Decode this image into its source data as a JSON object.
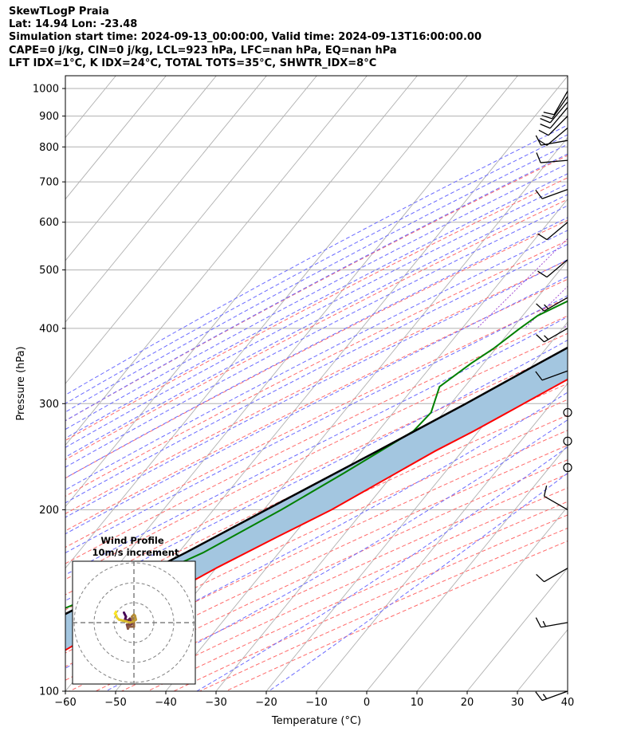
{
  "header": {
    "title": "SkewTLogP Praia",
    "location": "Lat: 14.94   Lon: -23.48",
    "times": "Simulation start time: 2024-09-13_00:00:00, Valid time: 2024-09-13T16:00:00.00",
    "parcel": "CAPE=0 j/kg, CIN=0 j/kg, LCL=923 hPa, LFC=nan hPa, EQ=nan hPa",
    "indices": "LFT IDX=1°C, K IDX=24°C, TOTAL TOTS=35°C, SHWTR_IDX=8°C"
  },
  "colors": {
    "temperature": "#ff0000",
    "dewpoint": "#008000",
    "parcel": "#000000",
    "cape_shading": "#a3c6e0",
    "dry_adiabat": "#ff6b6b",
    "moist_adiabat": "#6b6bff",
    "isotherm": "#b0b0b0",
    "mixing_ratio": "#9b3fd0"
  },
  "chart_data": [
    {
      "type": "line",
      "subtype": "skew-T log-P diagram",
      "xlabel": "Temperature (°C)",
      "ylabel": "Pressure (hPa)",
      "xlim": [
        -60,
        40
      ],
      "ylim": [
        1050,
        100
      ],
      "y_scale": "log",
      "x_ticks": [
        "−60",
        "−50",
        "−40",
        "−30",
        "−20",
        "−10",
        "0",
        "10",
        "20",
        "30",
        "40"
      ],
      "y_ticks": [
        "100",
        "200",
        "300",
        "400",
        "500",
        "600",
        "700",
        "800",
        "900",
        "1000"
      ],
      "grid": true,
      "series": [
        {
          "key": "temperature",
          "points": [
            [
              1000,
              27.0
            ],
            [
              960,
              25.0
            ],
            [
              930,
              25.5
            ],
            [
              900,
              26.5
            ],
            [
              850,
              26.5
            ],
            [
              800,
              24.0
            ],
            [
              750,
              21.5
            ],
            [
              700,
              19.0
            ],
            [
              650,
              17.0
            ],
            [
              600,
              14.5
            ],
            [
              550,
              11.5
            ],
            [
              500,
              8.5
            ],
            [
              450,
              5.0
            ],
            [
              400,
              -0.5
            ],
            [
              350,
              -7.5
            ],
            [
              300,
              -15.5
            ],
            [
              270,
              -21.0
            ],
            [
              250,
              -25.5
            ],
            [
              200,
              -36.5
            ],
            [
              180,
              -43.0
            ],
            [
              160,
              -50.0
            ],
            [
              140,
              -57.0
            ],
            [
              130,
              -61.5
            ],
            [
              120,
              -65.5
            ],
            [
              110,
              -69.5
            ],
            [
              100,
              -71.5
            ]
          ]
        },
        {
          "key": "dewpoint",
          "points": [
            [
              1000,
              22.0
            ],
            [
              970,
              22.5
            ],
            [
              950,
              21.0
            ],
            [
              920,
              14.5
            ],
            [
              900,
              10.0
            ],
            [
              870,
              7.0
            ],
            [
              850,
              6.0
            ],
            [
              820,
              6.0
            ],
            [
              800,
              7.5
            ],
            [
              750,
              9.5
            ],
            [
              700,
              7.0
            ],
            [
              650,
              2.0
            ],
            [
              600,
              -4.5
            ],
            [
              550,
              -11.0
            ],
            [
              500,
              -16.5
            ],
            [
              450,
              -22.5
            ],
            [
              420,
              -27.0
            ],
            [
              400,
              -28.5
            ],
            [
              370,
              -30.5
            ],
            [
              350,
              -32.5
            ],
            [
              320,
              -35.0
            ],
            [
              290,
              -32.5
            ],
            [
              270,
              -33.0
            ],
            [
              230,
              -40.0
            ],
            [
              200,
              -46.5
            ],
            [
              170,
              -55.0
            ],
            [
              150,
              -64.0
            ],
            [
              145,
              -69.0
            ],
            [
              135,
              -75.0
            ],
            [
              125,
              -80.0
            ],
            [
              100,
              -86.0
            ]
          ]
        },
        {
          "key": "parcel",
          "points": [
            [
              1000,
              27.0
            ],
            [
              923,
              20.6
            ],
            [
              900,
              19.9
            ],
            [
              850,
              18.0
            ],
            [
              800,
              16.3
            ],
            [
              700,
              11.5
            ],
            [
              600,
              5.8
            ],
            [
              500,
              -1.5
            ],
            [
              450,
              -6.5
            ],
            [
              400,
              -12.0
            ],
            [
              350,
              -19.0
            ],
            [
              300,
              -27.0
            ],
            [
              250,
              -37.0
            ],
            [
              200,
              -49.5
            ],
            [
              170,
              -58.5
            ],
            [
              150,
              -66.0
            ],
            [
              130,
              -74.5
            ],
            [
              115,
              -81.0
            ],
            [
              100,
              -90.0
            ]
          ]
        }
      ],
      "wind_barbs": [
        {
          "pressure": 100,
          "speed_kt": 15,
          "dir_deg": 250
        },
        {
          "pressure": 130,
          "speed_kt": 15,
          "dir_deg": 260
        },
        {
          "pressure": 160,
          "speed_kt": 10,
          "dir_deg": 240
        },
        {
          "pressure": 200,
          "speed_kt": 10,
          "dir_deg": 300
        },
        {
          "pressure": 235,
          "speed_kt": 0,
          "dir_deg": 0
        },
        {
          "pressure": 260,
          "speed_kt": 0,
          "dir_deg": 0
        },
        {
          "pressure": 290,
          "speed_kt": 0,
          "dir_deg": 0
        },
        {
          "pressure": 340,
          "speed_kt": 10,
          "dir_deg": 250
        },
        {
          "pressure": 400,
          "speed_kt": 15,
          "dir_deg": 240
        },
        {
          "pressure": 450,
          "speed_kt": 15,
          "dir_deg": 240
        },
        {
          "pressure": 520,
          "speed_kt": 10,
          "dir_deg": 230
        },
        {
          "pressure": 600,
          "speed_kt": 10,
          "dir_deg": 230
        },
        {
          "pressure": 680,
          "speed_kt": 10,
          "dir_deg": 250
        },
        {
          "pressure": 760,
          "speed_kt": 10,
          "dir_deg": 265
        },
        {
          "pressure": 820,
          "speed_kt": 10,
          "dir_deg": 260
        },
        {
          "pressure": 860,
          "speed_kt": 10,
          "dir_deg": 230
        },
        {
          "pressure": 900,
          "speed_kt": 10,
          "dir_deg": 225
        },
        {
          "pressure": 930,
          "speed_kt": 10,
          "dir_deg": 220
        },
        {
          "pressure": 950,
          "speed_kt": 10,
          "dir_deg": 220
        },
        {
          "pressure": 970,
          "speed_kt": 10,
          "dir_deg": 215
        },
        {
          "pressure": 990,
          "speed_kt": 10,
          "dir_deg": 210
        }
      ]
    },
    {
      "type": "line",
      "subtype": "hodograph",
      "title": "Wind Profile",
      "subtitle": "10m/s increment",
      "rings_ms": [
        10,
        20,
        30
      ],
      "points_uv_ms": [
        [
          -5.0,
          5.0
        ],
        [
          -4.0,
          3.0
        ],
        [
          -4.5,
          1.5
        ],
        [
          -3.0,
          1.0
        ],
        [
          -2.0,
          2.0
        ],
        [
          -1.5,
          0.5
        ],
        [
          -1.0,
          -0.5
        ],
        [
          -2.0,
          -1.0
        ],
        [
          -3.5,
          -1.0
        ],
        [
          -3.0,
          -3.0
        ],
        [
          -2.5,
          -2.0
        ],
        [
          0.0,
          -2.0
        ],
        [
          0.0,
          0.0
        ],
        [
          -0.5,
          1.5
        ],
        [
          -1.0,
          3.0
        ],
        [
          0.0,
          4.0
        ],
        [
          0.5,
          3.5
        ],
        [
          1.0,
          1.5
        ],
        [
          -0.5,
          0.5
        ],
        [
          -2.0,
          0.0
        ],
        [
          -3.5,
          0.5
        ],
        [
          -5.5,
          1.0
        ],
        [
          -7.5,
          1.5
        ],
        [
          -8.5,
          2.5
        ],
        [
          -9.0,
          4.0
        ],
        [
          -9.5,
          4.5
        ],
        [
          -9.0,
          5.5
        ]
      ]
    }
  ]
}
